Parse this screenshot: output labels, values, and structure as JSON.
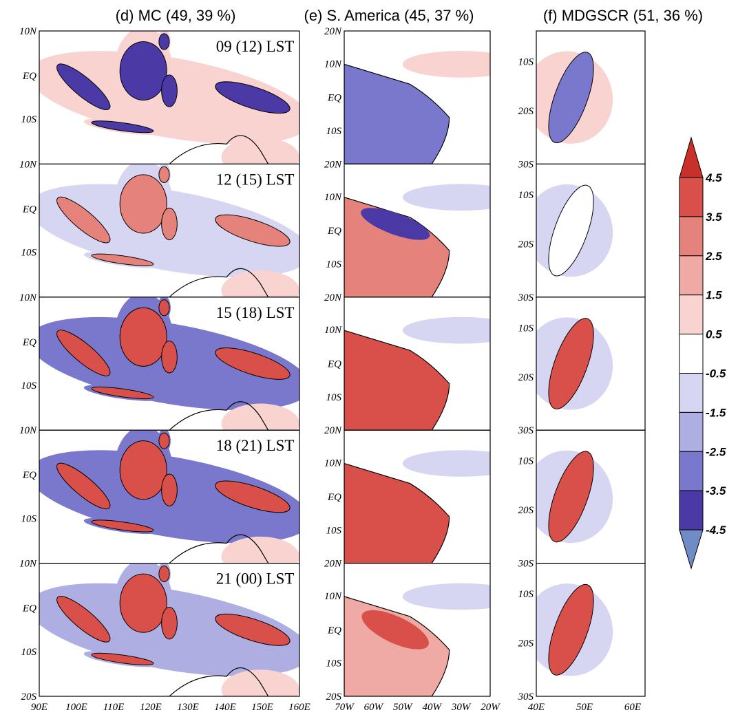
{
  "columns": [
    {
      "title": "(d) MC (49, 39 %)",
      "ylabels": [
        "10N",
        "EQ",
        "10S"
      ],
      "bottom_ylabel": "20S",
      "xlabels": [
        "90E",
        "100E",
        "110E",
        "120E",
        "130E",
        "140E",
        "150E",
        "160E"
      ]
    },
    {
      "title": "(e) S. America (45, 37 %)",
      "ylabels": [
        "20N",
        "10N",
        "EQ",
        "10S"
      ],
      "bottom_ylabel": "20S",
      "xlabels": [
        "70W",
        "60W",
        "50W",
        "40W",
        "30W",
        "20W"
      ]
    },
    {
      "title": "(f) MDGSCR (51, 36 %)",
      "ylabels": [
        "10S",
        "20S",
        "30S"
      ],
      "xlabels": [
        "40E",
        "50E",
        "60E"
      ]
    }
  ],
  "times": [
    "09 (12) LST",
    "12 (15) LST",
    "15 (18) LST",
    "18 (21) LST",
    "21 (00) LST"
  ],
  "colorbar": {
    "labels": [
      "4.5",
      "3.5",
      "2.5",
      "1.5",
      "0.5",
      "-0.5",
      "-1.5",
      "-2.5",
      "-3.5",
      "-4.5"
    ],
    "colors": [
      "#c9302a",
      "#d9504a",
      "#e5827b",
      "#efaaa5",
      "#f8d3d0",
      "#ffffff",
      "#d6d6f2",
      "#aeaee2",
      "#7a78cc",
      "#4b3aa6",
      "#6f8cc6"
    ]
  }
}
